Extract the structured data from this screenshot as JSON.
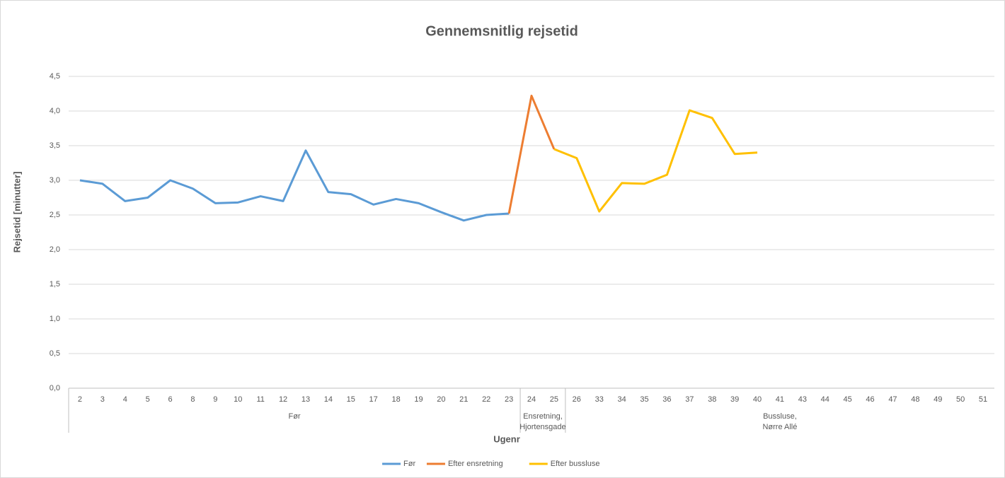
{
  "chart_data": {
    "type": "line",
    "title": "Gennemsnitlig rejsetid",
    "x_label": "Ugenr",
    "y_label": "Rejsetid [minutter]",
    "category_groups": [
      {
        "name": [
          "Før"
        ],
        "categories": [
          "2",
          "3",
          "4",
          "5",
          "6",
          "8",
          "9",
          "10",
          "11",
          "12",
          "13",
          "14",
          "15",
          "17",
          "18",
          "19",
          "20",
          "21",
          "22",
          "23"
        ]
      },
      {
        "name": [
          "Ensretning,",
          "Hjortensgade"
        ],
        "categories": [
          "24",
          "25"
        ]
      },
      {
        "name": [
          "Bussluse,",
          "Nørre Allé"
        ],
        "categories": [
          "26",
          "33",
          "34",
          "35",
          "36",
          "37",
          "38",
          "39",
          "40",
          "41",
          "43",
          "44",
          "45",
          "46",
          "47",
          "48",
          "49",
          "50",
          "51"
        ]
      }
    ],
    "series": [
      {
        "name": "Før",
        "color": "#5b9bd5",
        "values": [
          3.0,
          2.95,
          2.7,
          2.75,
          3.0,
          2.88,
          2.67,
          2.68,
          2.77,
          2.7,
          3.43,
          2.83,
          2.8,
          2.65,
          2.73,
          2.67,
          2.54,
          2.42,
          2.5,
          2.52,
          null,
          null,
          null,
          null,
          null,
          null,
          null,
          null,
          null,
          null,
          null,
          null,
          null,
          null,
          null,
          null,
          null,
          null,
          null,
          null,
          null
        ]
      },
      {
        "name": "Efter ensretning",
        "color": "#ed7d31",
        "values": [
          null,
          null,
          null,
          null,
          null,
          null,
          null,
          null,
          null,
          null,
          null,
          null,
          null,
          null,
          null,
          null,
          null,
          null,
          null,
          2.52,
          4.22,
          3.45,
          null,
          null,
          null,
          null,
          null,
          null,
          null,
          null,
          null,
          null,
          null,
          null,
          null,
          null,
          null,
          null,
          null,
          null,
          null
        ]
      },
      {
        "name": "Efter bussluse",
        "color": "#ffc000",
        "values": [
          null,
          null,
          null,
          null,
          null,
          null,
          null,
          null,
          null,
          null,
          null,
          null,
          null,
          null,
          null,
          null,
          null,
          null,
          null,
          null,
          null,
          3.45,
          3.32,
          2.55,
          2.96,
          2.95,
          3.08,
          4.01,
          3.9,
          3.38,
          3.4,
          null,
          null,
          null,
          null,
          null,
          null,
          null,
          null,
          null,
          null
        ]
      }
    ],
    "ylim": [
      0,
      4.5
    ],
    "yticks": [
      {
        "value": 0,
        "label": "0,0"
      },
      {
        "value": 0.5,
        "label": "0,5"
      },
      {
        "value": 1,
        "label": "1,0"
      },
      {
        "value": 1.5,
        "label": "1,5"
      },
      {
        "value": 2,
        "label": "2,0"
      },
      {
        "value": 2.5,
        "label": "2,5"
      },
      {
        "value": 3,
        "label": "3,0"
      },
      {
        "value": 3.5,
        "label": "3,5"
      },
      {
        "value": 4,
        "label": "4,0"
      },
      {
        "value": 4.5,
        "label": "4,5"
      }
    ],
    "grid": true,
    "legend": "bottom"
  }
}
